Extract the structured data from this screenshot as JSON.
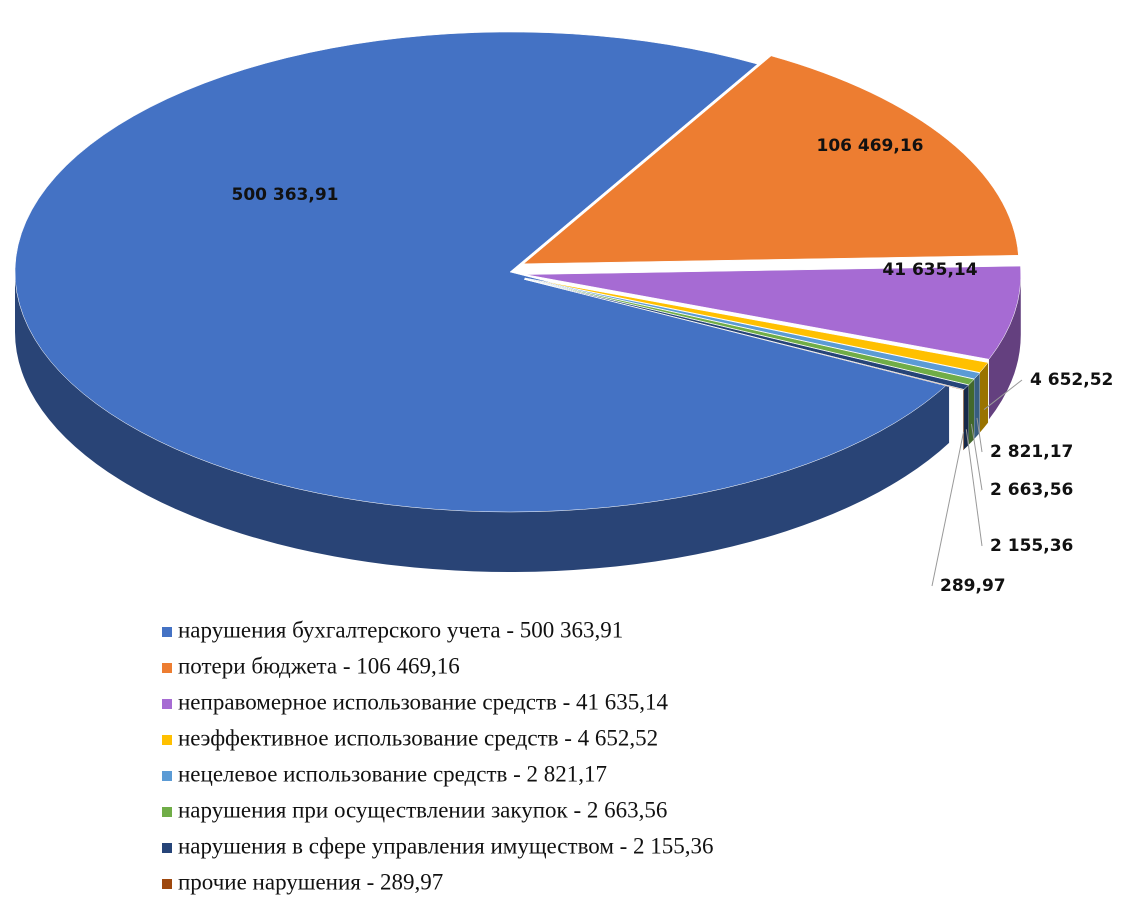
{
  "chart_data": {
    "type": "pie",
    "categories": [
      "нарушения бухгалтерского учета - 500 363,91",
      "потери бюджета - 106 469,16",
      "неправомерное использование средств - 41 635,14",
      "неэффективное использование средств - 4 652,52",
      "нецелевое использование средств - 2 821,17",
      "нарушения при осуществлении закупок - 2 663,56",
      "нарушения в сфере управления имуществом - 2 155,36",
      "прочие нарушения - 289,97"
    ],
    "values": [
      500363.91,
      106469.16,
      41635.14,
      4652.52,
      2821.17,
      2663.56,
      2155.36,
      289.97
    ],
    "value_labels": [
      "500 363,91",
      "106 469,16",
      "41 635,14",
      "4 652,52",
      "2 821,17",
      "2 663,56",
      "2 155,36",
      "289,97"
    ],
    "colors": [
      "#4472c4",
      "#ed7d31",
      "#a66bd3",
      "#ffc000",
      "#5b9bd5",
      "#70ad47",
      "#264478",
      "#9e480e"
    ],
    "legend": "bottom"
  }
}
